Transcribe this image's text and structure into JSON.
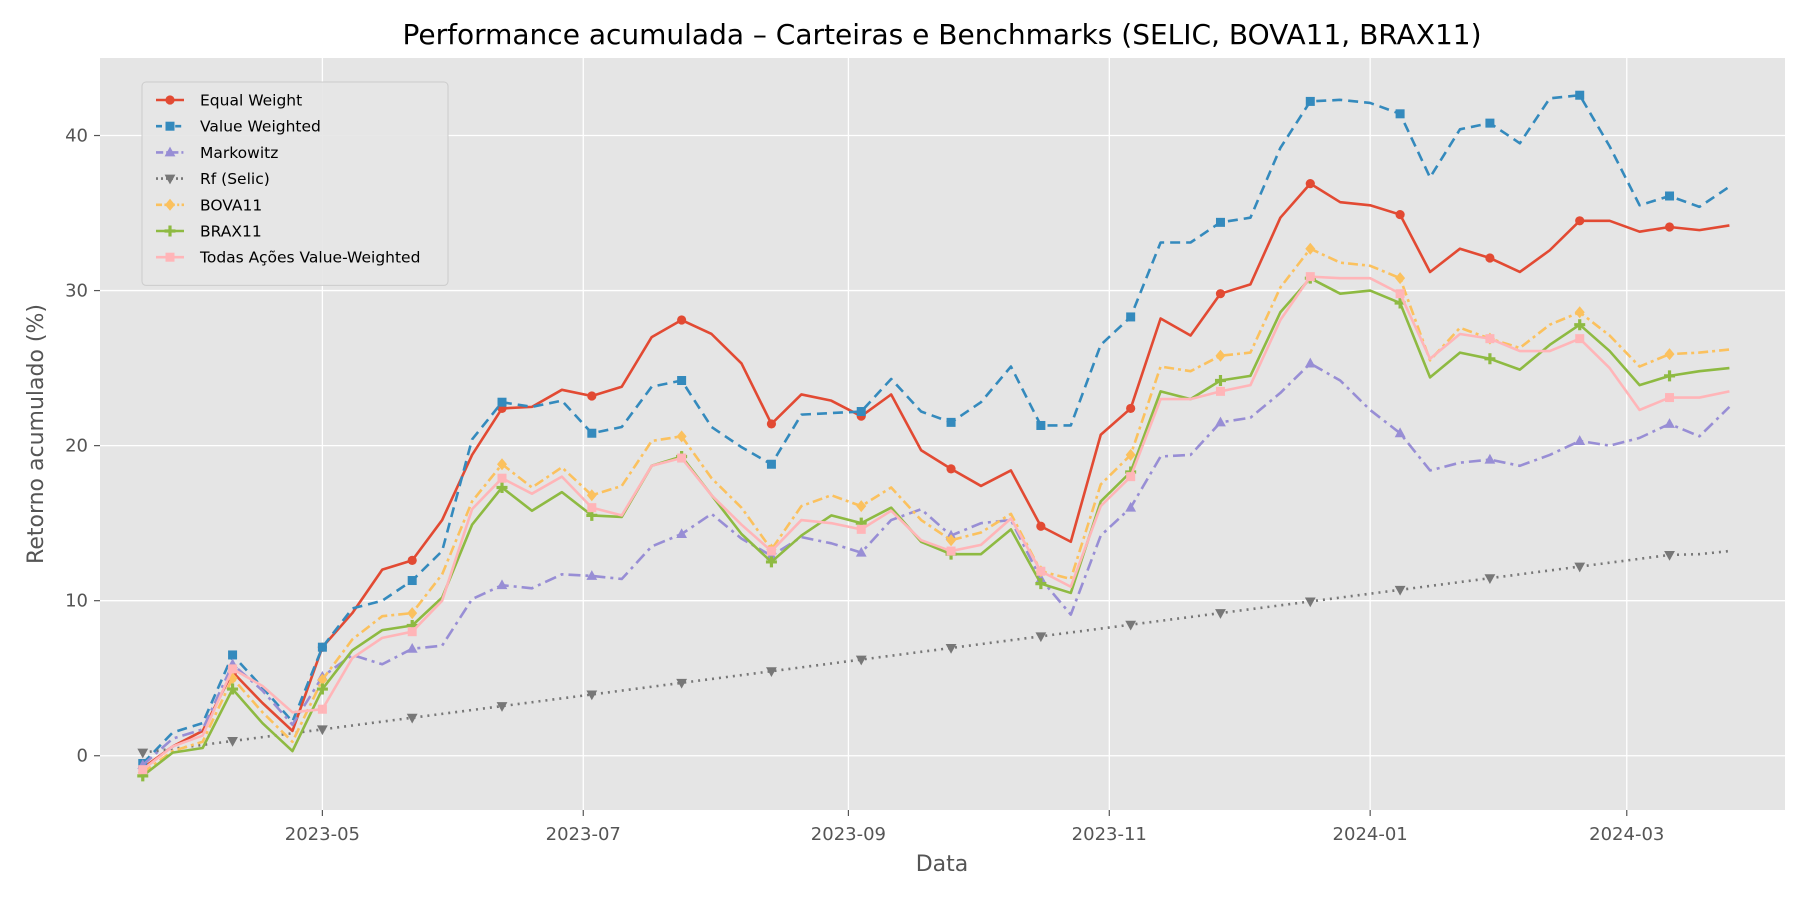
{
  "chart_data": {
    "type": "line",
    "title": "Performance acumulada – Carteiras e Benchmarks (SELIC, BOVA11, BRAX11)",
    "xlabel": "Data",
    "ylabel": "Retorno acumulado (%)",
    "ylim": [
      -3.5,
      45
    ],
    "xlim": [
      "2023-03-10",
      "2024-04-07"
    ],
    "grid": true,
    "legend_position": "top-left",
    "xticks": [
      "2023-05",
      "2023-07",
      "2023-09",
      "2023-11",
      "2024-01",
      "2024-03"
    ],
    "yticks": [
      0,
      10,
      20,
      30,
      40
    ],
    "x": [
      "2023-03-20",
      "2023-03-27",
      "2023-04-03",
      "2023-04-10",
      "2023-04-17",
      "2023-04-24",
      "2023-05-01",
      "2023-05-08",
      "2023-05-15",
      "2023-05-22",
      "2023-05-29",
      "2023-06-05",
      "2023-06-12",
      "2023-06-19",
      "2023-06-26",
      "2023-07-03",
      "2023-07-10",
      "2023-07-17",
      "2023-07-24",
      "2023-07-31",
      "2023-08-07",
      "2023-08-14",
      "2023-08-21",
      "2023-08-28",
      "2023-09-04",
      "2023-09-11",
      "2023-09-18",
      "2023-09-25",
      "2023-10-02",
      "2023-10-09",
      "2023-10-16",
      "2023-10-23",
      "2023-10-30",
      "2023-11-06",
      "2023-11-13",
      "2023-11-20",
      "2023-11-27",
      "2023-12-04",
      "2023-12-11",
      "2023-12-18",
      "2023-12-25",
      "2024-01-01",
      "2024-01-08",
      "2024-01-15",
      "2024-01-22",
      "2024-01-29",
      "2024-02-05",
      "2024-02-12",
      "2024-02-19",
      "2024-02-26",
      "2024-03-04",
      "2024-03-11",
      "2024-03-18",
      "2024-03-25"
    ],
    "series": [
      {
        "name": "Equal Weight",
        "color": "#E24A33",
        "dash": "",
        "marker": "circle",
        "values": [
          -0.8,
          0.6,
          1.6,
          5.4,
          3.4,
          1.6,
          7.0,
          9.2,
          12.0,
          12.6,
          15.2,
          19.4,
          22.4,
          22.5,
          23.6,
          23.2,
          23.8,
          27.0,
          28.1,
          27.2,
          25.3,
          21.4,
          23.3,
          22.9,
          21.9,
          23.3,
          19.7,
          18.5,
          17.4,
          18.4,
          14.8,
          13.8,
          20.7,
          22.4,
          28.2,
          27.1,
          29.8,
          30.4,
          34.7,
          36.9,
          35.7,
          35.5,
          34.9,
          31.2,
          32.7,
          32.1,
          31.2,
          32.6,
          34.5,
          34.5,
          33.8,
          34.1,
          33.9,
          34.2
        ]
      },
      {
        "name": "Value Weighted",
        "color": "#348ABD",
        "dash": "10,6",
        "marker": "square",
        "values": [
          -0.5,
          1.5,
          2.1,
          6.5,
          4.4,
          2.2,
          7.0,
          9.5,
          10.0,
          11.3,
          13.2,
          20.4,
          22.8,
          22.5,
          22.9,
          20.8,
          21.2,
          23.8,
          24.2,
          21.2,
          19.9,
          18.8,
          22.0,
          22.1,
          22.2,
          24.3,
          22.2,
          21.5,
          22.8,
          25.1,
          21.3,
          21.3,
          26.5,
          28.3,
          33.1,
          33.1,
          34.4,
          34.7,
          39.2,
          42.2,
          42.3,
          42.1,
          41.4,
          37.3,
          40.4,
          40.8,
          39.5,
          42.4,
          42.6,
          39.3,
          35.5,
          36.1,
          35.4,
          36.7
        ]
      },
      {
        "name": "Markowitz",
        "color": "#988ED5",
        "dash": "12,5,3,5",
        "marker": "triangle-up",
        "values": [
          -0.6,
          1.1,
          1.7,
          5.9,
          4.2,
          2.0,
          5.1,
          6.5,
          5.9,
          6.9,
          7.1,
          10.1,
          11.0,
          10.8,
          11.7,
          11.6,
          11.4,
          13.5,
          14.3,
          15.6,
          14.0,
          12.9,
          14.1,
          13.7,
          13.1,
          15.2,
          15.9,
          14.2,
          15.0,
          15.2,
          11.4,
          9.1,
          14.2,
          16.0,
          19.3,
          19.4,
          21.5,
          21.8,
          23.4,
          25.3,
          24.2,
          22.3,
          20.8,
          18.4,
          18.9,
          19.1,
          18.7,
          19.4,
          20.3,
          20.0,
          20.5,
          21.4,
          20.6,
          22.5
        ]
      },
      {
        "name": "Rf (Selic)",
        "color": "#777777",
        "dash": "2,5",
        "marker": "triangle-down",
        "values": [
          0.2,
          0.45,
          0.7,
          0.95,
          1.2,
          1.45,
          1.7,
          1.95,
          2.2,
          2.45,
          2.7,
          2.95,
          3.2,
          3.45,
          3.7,
          3.95,
          4.2,
          4.45,
          4.7,
          4.95,
          5.2,
          5.45,
          5.7,
          5.95,
          6.2,
          6.45,
          6.7,
          6.95,
          7.2,
          7.45,
          7.7,
          7.95,
          8.2,
          8.45,
          8.7,
          8.95,
          9.2,
          9.45,
          9.7,
          9.95,
          10.2,
          10.45,
          10.7,
          10.95,
          11.2,
          11.45,
          11.7,
          11.95,
          12.2,
          12.45,
          12.7,
          12.95,
          13.0,
          13.2
        ]
      },
      {
        "name": "BOVA11",
        "color": "#FBC15E",
        "dash": "10,4,3,4",
        "marker": "diamond",
        "values": [
          -1.1,
          0.3,
          0.9,
          5.0,
          2.8,
          0.9,
          4.9,
          7.5,
          9.0,
          9.2,
          11.7,
          16.4,
          18.8,
          17.3,
          18.6,
          16.8,
          17.4,
          20.3,
          20.6,
          17.9,
          16.0,
          13.3,
          16.1,
          16.8,
          16.1,
          17.3,
          15.2,
          13.9,
          14.4,
          15.6,
          11.9,
          11.4,
          17.5,
          19.4,
          25.1,
          24.8,
          25.8,
          26.0,
          30.2,
          32.7,
          31.8,
          31.6,
          30.8,
          25.5,
          27.6,
          26.9,
          26.3,
          27.8,
          28.6,
          27.1,
          25.1,
          25.9,
          26.0,
          26.2
        ]
      },
      {
        "name": "BRAX11",
        "color": "#8EBA42",
        "dash": "",
        "marker": "plus",
        "values": [
          -1.3,
          0.2,
          0.5,
          4.3,
          2.1,
          0.3,
          4.3,
          6.8,
          8.1,
          8.4,
          10.2,
          14.9,
          17.3,
          15.8,
          17.0,
          15.5,
          15.4,
          18.7,
          19.3,
          16.8,
          14.3,
          12.5,
          14.2,
          15.5,
          15.0,
          16.0,
          13.8,
          13.0,
          13.0,
          14.6,
          11.1,
          10.5,
          16.4,
          18.3,
          23.5,
          23.0,
          24.2,
          24.5,
          28.6,
          30.8,
          29.8,
          30.0,
          29.2,
          24.4,
          26.0,
          25.6,
          24.9,
          26.5,
          27.8,
          26.1,
          23.9,
          24.5,
          24.8,
          25.0
        ]
      },
      {
        "name": "Todas Ações Value-Weighted",
        "color": "#FFB5B8",
        "dash": "",
        "marker": "square",
        "values": [
          -0.9,
          0.6,
          1.3,
          5.6,
          4.5,
          2.8,
          3.0,
          6.3,
          7.6,
          8.0,
          10.0,
          15.9,
          17.9,
          16.9,
          18.0,
          16.0,
          15.5,
          18.7,
          19.2,
          16.8,
          14.9,
          13.2,
          15.2,
          15.0,
          14.6,
          15.8,
          13.9,
          13.2,
          13.6,
          15.3,
          11.9,
          10.9,
          16.1,
          18.0,
          23.0,
          23.0,
          23.5,
          23.9,
          28.1,
          30.9,
          30.8,
          30.8,
          29.8,
          25.6,
          27.2,
          26.9,
          26.1,
          26.1,
          26.9,
          25.0,
          22.3,
          23.1,
          23.1,
          23.5
        ]
      }
    ]
  }
}
